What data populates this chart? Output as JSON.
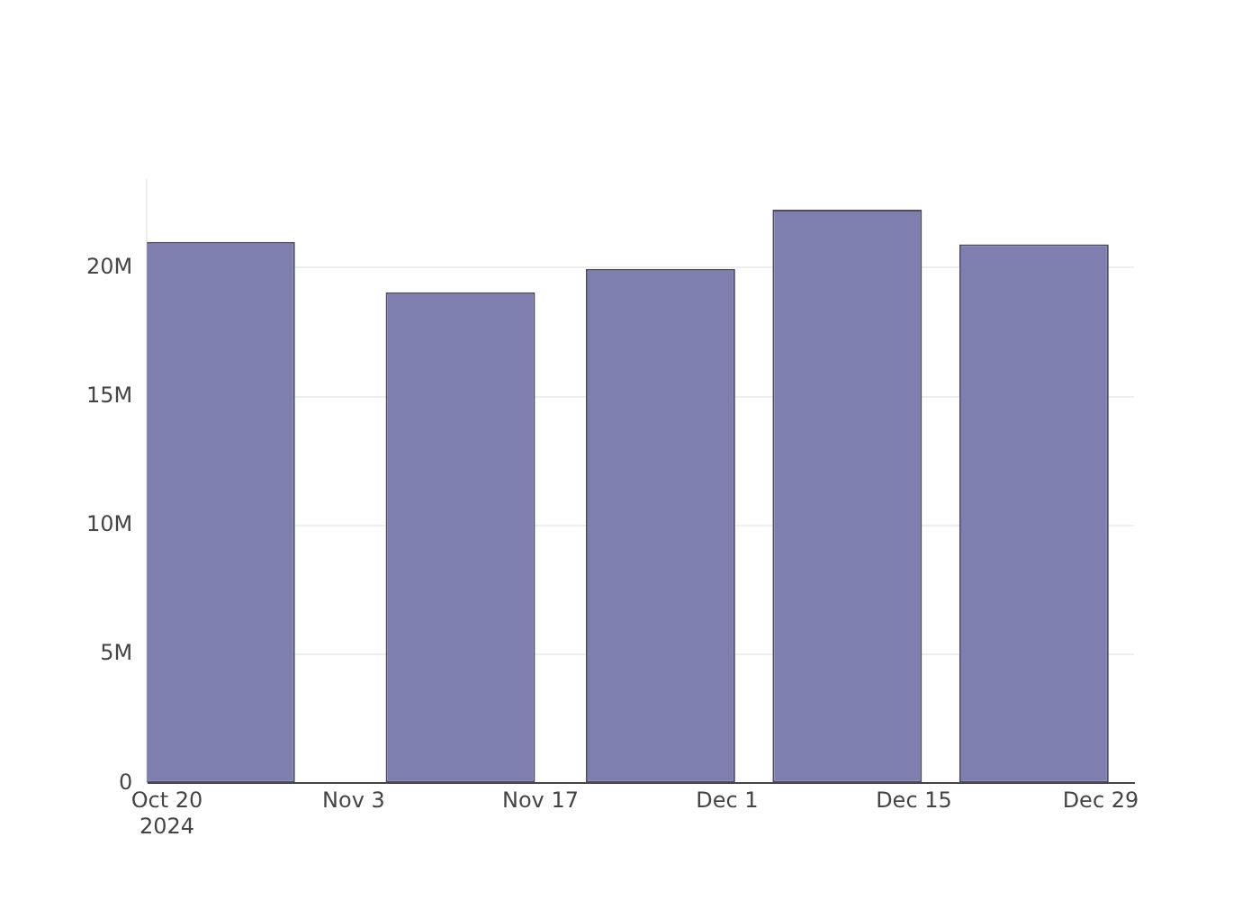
{
  "chart_data": {
    "type": "bar",
    "x": [
      "2024-10-24",
      "2024-11-11",
      "2024-11-26",
      "2024-12-10",
      "2024-12-24"
    ],
    "values": [
      21000000,
      19050000,
      19950000,
      22250000,
      20900000
    ],
    "color": "#7e7eaf",
    "xlim": [
      "2024-10-18T12:00",
      "2024-12-31T12:00"
    ],
    "xticks": [
      {
        "value": "2024-10-20",
        "label": "Oct 20\n2024"
      },
      {
        "value": "2024-11-03",
        "label": "Nov 3"
      },
      {
        "value": "2024-11-17",
        "label": "Nov 17"
      },
      {
        "value": "2024-12-01",
        "label": "Dec 1"
      },
      {
        "value": "2024-12-15",
        "label": "Dec 15"
      },
      {
        "value": "2024-12-29",
        "label": "Dec 29"
      }
    ],
    "yticks": [
      0,
      {
        "value": 5000000,
        "label": "5M"
      },
      {
        "value": 10000000,
        "label": "10M"
      },
      {
        "value": 15000000,
        "label": "15M"
      },
      {
        "value": 20000000,
        "label": "20M"
      }
    ],
    "ylim": [
      0,
      23400000
    ],
    "grid": "y",
    "legend": false
  }
}
